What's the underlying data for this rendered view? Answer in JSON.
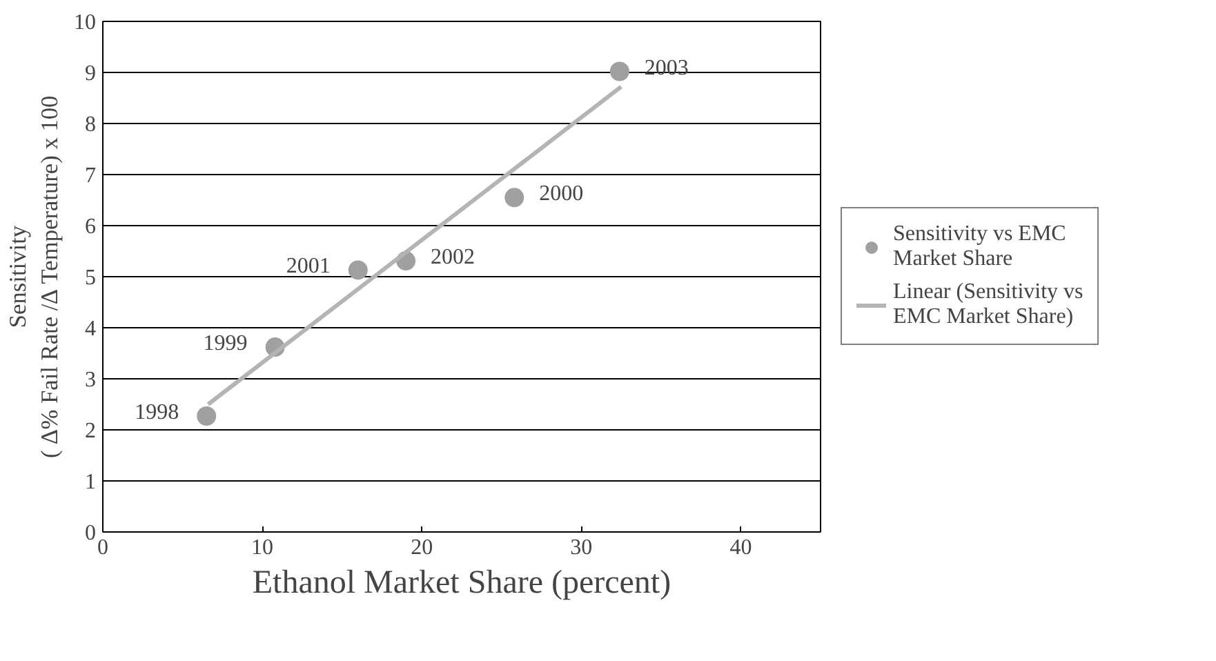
{
  "chart_data": {
    "type": "scatter",
    "xlabel": "Ethanol Market Share (percent)",
    "ylabel": "Sensitivity\n( ∆% Fail Rate /∆ Temperature) x 100",
    "series": [
      {
        "name": "Sensitivity vs EMC Market Share",
        "color": "#a0a0a0",
        "marker": "circle",
        "x": [
          6.5,
          10.8,
          25.8,
          16.0,
          19.0,
          32.4
        ],
        "values": [
          2.27,
          3.62,
          6.55,
          5.13,
          5.31,
          9.02
        ]
      },
      {
        "name": "Linear (Sensitivity vs EMC Market Share)",
        "type": "line",
        "color": "#b4b4b4",
        "line_style": "solid",
        "x": [
          6.6,
          32.5
        ],
        "values": [
          2.5,
          8.72
        ]
      }
    ],
    "annotations": [
      {
        "text": "1998",
        "x": 6.5,
        "y": 2.27
      },
      {
        "text": "1999",
        "x": 10.8,
        "y": 3.62
      },
      {
        "text": "2000",
        "x": 25.8,
        "y": 6.55
      },
      {
        "text": "2001",
        "x": 16.0,
        "y": 5.13
      },
      {
        "text": "2002",
        "x": 19.0,
        "y": 5.31
      },
      {
        "text": "2003",
        "x": 32.4,
        "y": 9.02
      }
    ],
    "xlim": [
      0,
      45
    ],
    "xticks": [
      0,
      10,
      20,
      30,
      40
    ],
    "ylim": [
      0,
      10
    ],
    "yticks": [
      0,
      1,
      2,
      3,
      4,
      5,
      6,
      7,
      8,
      9,
      10
    ],
    "grid": "y",
    "legend": "right"
  }
}
